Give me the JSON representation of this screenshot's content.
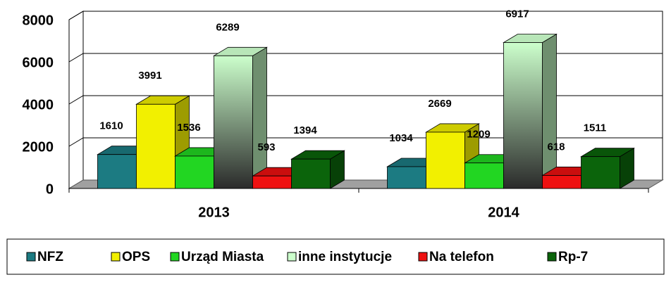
{
  "chart_data": {
    "type": "bar3d",
    "categories": [
      "2013",
      "2014"
    ],
    "series": [
      {
        "name": "NFZ",
        "color": "#1c7b82",
        "values": [
          1610,
          1034
        ]
      },
      {
        "name": "OPS",
        "color": "#f2f000",
        "values": [
          3991,
          2669
        ]
      },
      {
        "name": "Urząd Miasta",
        "color": "#22d622",
        "values": [
          1536,
          1209
        ]
      },
      {
        "name": "inne instytucje",
        "color": "#ccffcc",
        "values": [
          6289,
          6917
        ]
      },
      {
        "name": "Na telefon",
        "color": "#ee1111",
        "values": [
          593,
          618
        ]
      },
      {
        "name": "Rp-7",
        "color": "#0b640b",
        "values": [
          1394,
          1511
        ]
      }
    ],
    "ylim": [
      0,
      8000
    ],
    "yticks": [
      0,
      2000,
      4000,
      6000,
      8000
    ],
    "grid": true,
    "legend": "bottom"
  }
}
